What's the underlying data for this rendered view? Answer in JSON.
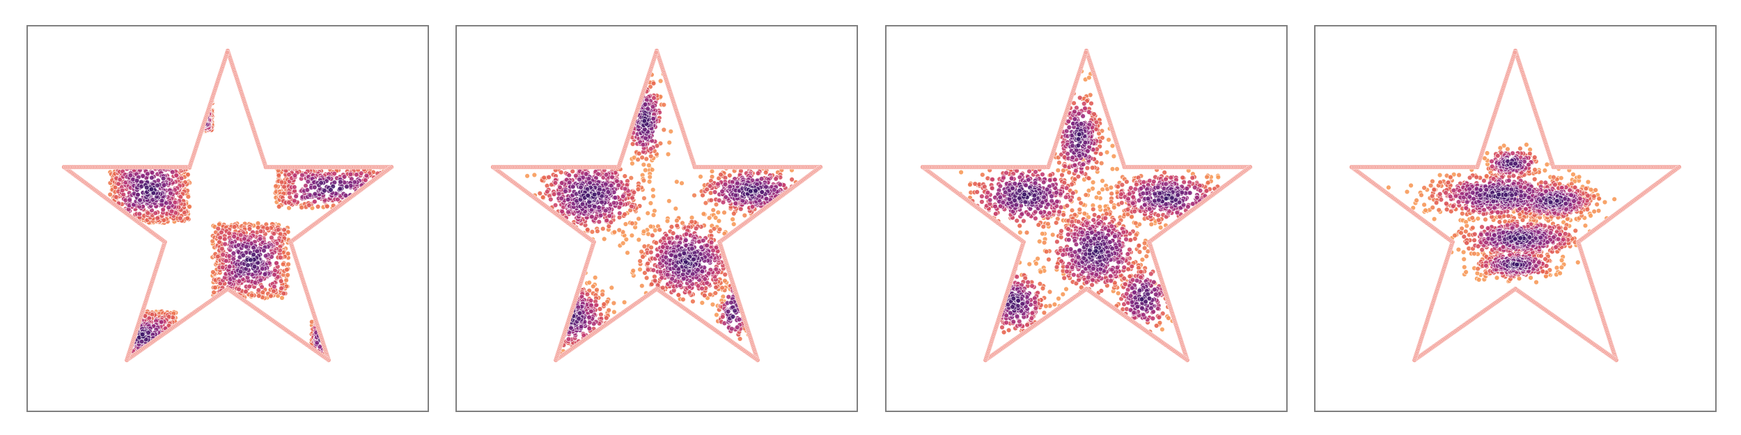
{
  "figure": {
    "panel_count": 4,
    "boundary_color": "#f4a7a0",
    "colormap": [
      "#2d1160",
      "#5c2176",
      "#8c2981",
      "#c33b72",
      "#e8654f",
      "#f79a5a"
    ]
  },
  "chart_data": [
    {
      "type": "scatter",
      "panel": 1,
      "axes": "hidden",
      "grid": false,
      "xlim": [
        -1.05,
        1.05
      ],
      "ylim": [
        -1.0,
        1.05
      ],
      "boundary": {
        "shape": "five-point star",
        "vertices": [
          [
            0.0,
            0.92
          ],
          [
            0.2,
            0.3
          ],
          [
            0.86,
            0.3
          ],
          [
            0.33,
            -0.1
          ],
          [
            0.53,
            -0.73
          ],
          [
            0.0,
            -0.35
          ],
          [
            -0.53,
            -0.73
          ],
          [
            -0.33,
            -0.1
          ],
          [
            -0.86,
            0.3
          ],
          [
            -0.2,
            0.3
          ]
        ]
      },
      "point_count": 5000,
      "clusters": [
        {
          "shape": "square",
          "center": [
            -0.13,
            0.78
          ],
          "half_size": [
            0.05,
            0.14
          ],
          "weight": 0.5
        },
        {
          "shape": "square",
          "center": [
            -0.13,
            0.55
          ],
          "half_size": [
            0.05,
            0.06
          ],
          "weight": 0.3
        },
        {
          "shape": "square",
          "center": [
            -0.41,
            0.18
          ],
          "half_size": [
            0.21,
            0.18
          ],
          "weight": 1.4
        },
        {
          "shape": "square",
          "center": [
            0.55,
            0.19
          ],
          "half_size": [
            0.3,
            0.11
          ],
          "weight": 0.9
        },
        {
          "shape": "square",
          "center": [
            0.12,
            -0.2
          ],
          "half_size": [
            0.2,
            0.2
          ],
          "weight": 1.6
        },
        {
          "shape": "square",
          "center": [
            -0.45,
            -0.6
          ],
          "half_size": [
            0.18,
            0.13
          ],
          "weight": 0.6
        },
        {
          "shape": "square",
          "center": [
            0.48,
            -0.62
          ],
          "half_size": [
            0.04,
            0.1
          ],
          "weight": 0.15
        }
      ]
    },
    {
      "type": "scatter",
      "panel": 2,
      "axes": "hidden",
      "grid": false,
      "xlim": [
        -1.05,
        1.05
      ],
      "ylim": [
        -1.0,
        1.05
      ],
      "boundary": {
        "shape": "five-point star",
        "vertices": [
          [
            0.0,
            0.92
          ],
          [
            0.2,
            0.3
          ],
          [
            0.86,
            0.3
          ],
          [
            0.33,
            -0.1
          ],
          [
            0.53,
            -0.73
          ],
          [
            0.0,
            -0.35
          ],
          [
            -0.53,
            -0.73
          ],
          [
            -0.33,
            -0.1
          ],
          [
            -0.86,
            0.3
          ],
          [
            -0.2,
            0.3
          ]
        ]
      },
      "point_count": 5000,
      "clusters": [
        {
          "shape": "blob",
          "center": [
            -0.06,
            0.55
          ],
          "spread": [
            0.08,
            0.18
          ],
          "weight": 0.6
        },
        {
          "shape": "blob",
          "center": [
            -0.35,
            0.15
          ],
          "spread": [
            0.22,
            0.16
          ],
          "weight": 1.4
        },
        {
          "shape": "blob",
          "center": [
            0.5,
            0.17
          ],
          "spread": [
            0.22,
            0.1
          ],
          "weight": 0.9
        },
        {
          "shape": "blob",
          "center": [
            0.16,
            -0.2
          ],
          "spread": [
            0.19,
            0.17
          ],
          "weight": 1.6
        },
        {
          "shape": "blob",
          "center": [
            -0.45,
            -0.5
          ],
          "spread": [
            0.16,
            0.14
          ],
          "weight": 0.6
        },
        {
          "shape": "blob",
          "center": [
            0.4,
            -0.48
          ],
          "spread": [
            0.06,
            0.14
          ],
          "weight": 0.2
        }
      ]
    },
    {
      "type": "scatter",
      "panel": 3,
      "axes": "hidden",
      "grid": false,
      "xlim": [
        -1.05,
        1.05
      ],
      "ylim": [
        -1.0,
        1.05
      ],
      "boundary": {
        "shape": "five-point star",
        "vertices": [
          [
            0.0,
            0.92
          ],
          [
            0.2,
            0.3
          ],
          [
            0.86,
            0.3
          ],
          [
            0.33,
            -0.1
          ],
          [
            0.53,
            -0.73
          ],
          [
            0.0,
            -0.35
          ],
          [
            -0.53,
            -0.73
          ],
          [
            -0.33,
            -0.1
          ],
          [
            -0.86,
            0.3
          ],
          [
            -0.2,
            0.3
          ]
        ]
      },
      "point_count": 5000,
      "clusters": [
        {
          "shape": "blob",
          "center": [
            -0.04,
            0.45
          ],
          "spread": [
            0.1,
            0.2
          ],
          "weight": 0.8
        },
        {
          "shape": "blob",
          "center": [
            -0.32,
            0.15
          ],
          "spread": [
            0.24,
            0.14
          ],
          "weight": 1.2
        },
        {
          "shape": "blob",
          "center": [
            0.42,
            0.14
          ],
          "spread": [
            0.24,
            0.11
          ],
          "weight": 1.0
        },
        {
          "shape": "blob",
          "center": [
            0.05,
            -0.15
          ],
          "spread": [
            0.2,
            0.18
          ],
          "weight": 1.6
        },
        {
          "shape": "blob",
          "center": [
            -0.38,
            -0.42
          ],
          "spread": [
            0.14,
            0.14
          ],
          "weight": 0.6
        },
        {
          "shape": "blob",
          "center": [
            0.3,
            -0.4
          ],
          "spread": [
            0.12,
            0.14
          ],
          "weight": 0.5
        }
      ]
    },
    {
      "type": "scatter",
      "panel": 4,
      "axes": "hidden",
      "grid": false,
      "xlim": [
        -1.05,
        1.05
      ],
      "ylim": [
        -1.0,
        1.05
      ],
      "boundary": {
        "shape": "five-point star",
        "vertices": [
          [
            0.0,
            0.92
          ],
          [
            0.2,
            0.3
          ],
          [
            0.86,
            0.3
          ],
          [
            0.33,
            -0.1
          ],
          [
            0.53,
            -0.73
          ],
          [
            0.0,
            -0.35
          ],
          [
            -0.53,
            -0.73
          ],
          [
            -0.33,
            -0.1
          ],
          [
            -0.86,
            0.3
          ],
          [
            -0.2,
            0.3
          ]
        ]
      },
      "point_count": 5000,
      "clusters": [
        {
          "shape": "blob",
          "center": [
            -0.02,
            0.32
          ],
          "spread": [
            0.12,
            0.06
          ],
          "weight": 0.4
        },
        {
          "shape": "blob",
          "center": [
            -0.08,
            0.15
          ],
          "spread": [
            0.3,
            0.1
          ],
          "weight": 1.6
        },
        {
          "shape": "blob",
          "center": [
            0.2,
            0.12
          ],
          "spread": [
            0.18,
            0.08
          ],
          "weight": 1.0
        },
        {
          "shape": "blob",
          "center": [
            0.02,
            -0.08
          ],
          "spread": [
            0.26,
            0.08
          ],
          "weight": 1.2
        },
        {
          "shape": "blob",
          "center": [
            0.0,
            -0.22
          ],
          "spread": [
            0.16,
            0.06
          ],
          "weight": 0.8
        }
      ]
    }
  ]
}
